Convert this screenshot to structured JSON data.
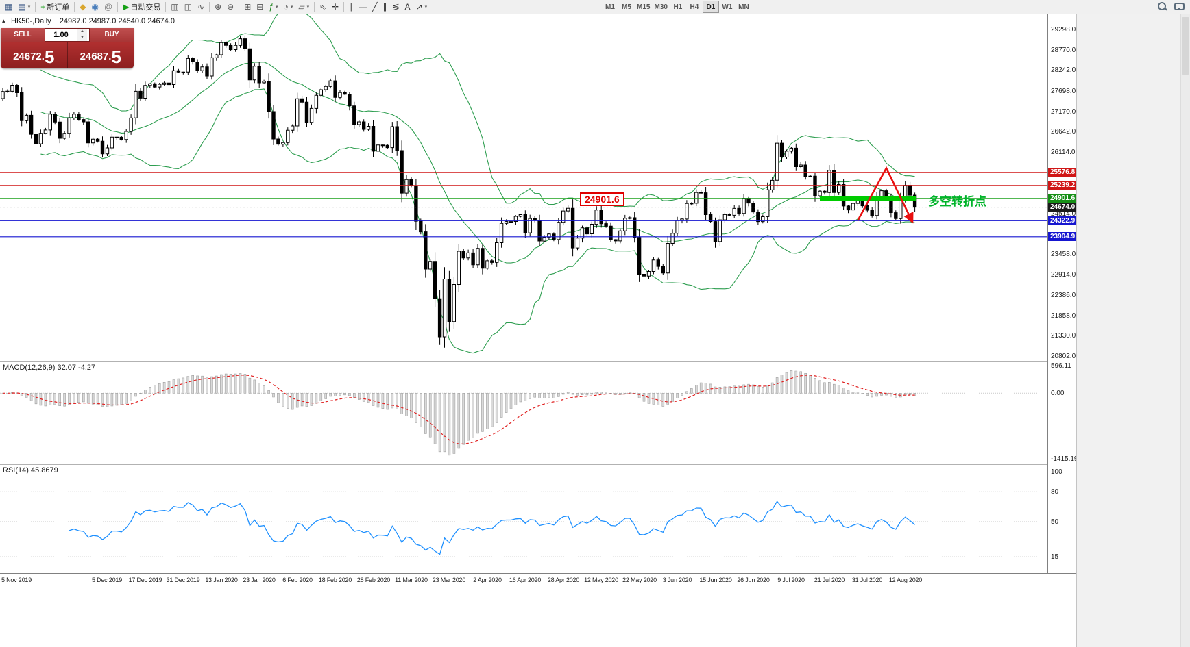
{
  "toolbar": {
    "items": [
      {
        "name": "new-chart-icon",
        "glyph": "▦",
        "color": "#44608a"
      },
      {
        "name": "profiles-icon",
        "glyph": "▤",
        "color": "#44608a",
        "dropdown": true
      },
      {
        "sep": true
      },
      {
        "name": "new-order-button",
        "glyph": "+",
        "color": "#0f9d0f",
        "label": "新订单"
      },
      {
        "sep": true
      },
      {
        "name": "history-center-icon",
        "glyph": "◆",
        "color": "#d9a62e"
      },
      {
        "name": "market-watch-icon",
        "glyph": "◉",
        "color": "#4a7ebb"
      },
      {
        "name": "mql-community-icon",
        "glyph": "@",
        "color": "#808080"
      },
      {
        "sep": true
      },
      {
        "name": "autotrading-button",
        "glyph": "▶",
        "color": "#17a017",
        "label": "自动交易"
      },
      {
        "sep": true
      },
      {
        "name": "bar-chart-icon",
        "glyph": "▥",
        "color": "#555555"
      },
      {
        "name": "candlestick-chart-icon",
        "glyph": "◫",
        "color": "#555555"
      },
      {
        "name": "line-chart-icon",
        "glyph": "∿",
        "color": "#555555"
      },
      {
        "sep": true
      },
      {
        "name": "zoom-in-icon",
        "glyph": "⊕",
        "color": "#555555"
      },
      {
        "name": "zoom-out-icon",
        "glyph": "⊖",
        "color": "#555555"
      },
      {
        "sep": true
      },
      {
        "name": "tile-windows-icon",
        "glyph": "⊞",
        "color": "#555555"
      },
      {
        "name": "arrange-icon",
        "glyph": "⊟",
        "color": "#555555"
      },
      {
        "name": "indicators-icon",
        "glyph": "ƒ",
        "color": "#0f7d0f",
        "dropdown": true
      },
      {
        "name": "periods-icon",
        "glyph": "◔",
        "color": "#555555",
        "dropdown": true
      },
      {
        "name": "templates-icon",
        "glyph": "▱",
        "color": "#555555",
        "dropdown": true
      },
      {
        "sep": true
      },
      {
        "name": "cursor-icon",
        "glyph": "⇖",
        "color": "#333333"
      },
      {
        "name": "crosshair-icon",
        "glyph": "✛",
        "color": "#333333"
      },
      {
        "sep": true
      },
      {
        "name": "vertical-line-icon",
        "glyph": "∣",
        "color": "#333333"
      },
      {
        "name": "horizontal-line-icon",
        "glyph": "―",
        "color": "#333333"
      },
      {
        "name": "trendline-icon",
        "glyph": "╱",
        "color": "#333333"
      },
      {
        "name": "channel-icon",
        "glyph": "∥",
        "color": "#333333"
      },
      {
        "name": "fibonacci-icon",
        "glyph": "≶",
        "color": "#333333"
      },
      {
        "name": "text-icon",
        "glyph": "A",
        "color": "#333333"
      },
      {
        "name": "arrows-icon",
        "glyph": "↗",
        "color": "#333333",
        "dropdown": true
      }
    ],
    "timeframes": [
      "M1",
      "M5",
      "M15",
      "M30",
      "H1",
      "H4",
      "D1",
      "W1",
      "MN"
    ],
    "active_timeframe": "D1"
  },
  "chart": {
    "title": "HK50-,Daily",
    "ohlc": "24987.0 24987.0 24540.0 24674.0",
    "collapse_glyph": "▴"
  },
  "trade_panel": {
    "sell_label": "SELL",
    "buy_label": "BUY",
    "volume": "1.00",
    "sell_price_main": "24672.",
    "sell_price_big": "5",
    "buy_price_main": "24687.",
    "buy_price_big": "5"
  },
  "price_axis": {
    "labels": [
      {
        "v": "29298.0",
        "n": 29298
      },
      {
        "v": "28770.0",
        "n": 28770
      },
      {
        "v": "28242.0",
        "n": 28242
      },
      {
        "v": "27698.0",
        "n": 27698
      },
      {
        "v": "27170.0",
        "n": 27170
      },
      {
        "v": "26642.0",
        "n": 26642
      },
      {
        "v": "26114.0",
        "n": 26114
      },
      {
        "v": "24514.0",
        "n": 24514
      },
      {
        "v": "23458.0",
        "n": 23458
      },
      {
        "v": "22914.0",
        "n": 22914
      },
      {
        "v": "22386.0",
        "n": 22386
      },
      {
        "v": "21858.0",
        "n": 21858
      },
      {
        "v": "21330.0",
        "n": 21330
      },
      {
        "v": "20802.0",
        "n": 20802
      }
    ],
    "tags": [
      {
        "v": "25576.8",
        "n": 25576.8,
        "color": "#d01616",
        "name": "resistance-1-tag"
      },
      {
        "v": "25239.2",
        "n": 25239.2,
        "color": "#d01616",
        "name": "resistance-2-tag"
      },
      {
        "v": "24901.6",
        "n": 24901.6,
        "color": "#169016",
        "name": "pivot-tag"
      },
      {
        "v": "24674.0",
        "n": 24674.0,
        "color": "#1a1a1a",
        "name": "bid-price-tag"
      },
      {
        "v": "24322.9",
        "n": 24322.9,
        "color": "#1616d0",
        "name": "support-1-tag"
      },
      {
        "v": "23904.9",
        "n": 23904.9,
        "color": "#1616d0",
        "name": "support-2-tag"
      }
    ]
  },
  "x_axis": {
    "labels": [
      {
        "t": "5 Nov 2019",
        "i": 0
      },
      {
        "t": "5 Dec 2019",
        "i": 22
      },
      {
        "t": "17 Dec 2019",
        "i": 30
      },
      {
        "t": "31 Dec 2019",
        "i": 38
      },
      {
        "t": "13 Jan 2020",
        "i": 46
      },
      {
        "t": "23 Jan 2020",
        "i": 54
      },
      {
        "t": "6 Feb 2020",
        "i": 62
      },
      {
        "t": "18 Feb 2020",
        "i": 70
      },
      {
        "t": "28 Feb 2020",
        "i": 78
      },
      {
        "t": "11 Mar 2020",
        "i": 86
      },
      {
        "t": "23 Mar 2020",
        "i": 94
      },
      {
        "t": "2 Apr 2020",
        "i": 102
      },
      {
        "t": "16 Apr 2020",
        "i": 110
      },
      {
        "t": "28 Apr 2020",
        "i": 118
      },
      {
        "t": "12 May 2020",
        "i": 126
      },
      {
        "t": "22 May 2020",
        "i": 134
      },
      {
        "t": "3 Jun 2020",
        "i": 142
      },
      {
        "t": "15 Jun 2020",
        "i": 150
      },
      {
        "t": "26 Jun 2020",
        "i": 158
      },
      {
        "t": "9 Jul 2020",
        "i": 166
      },
      {
        "t": "21 Jul 2020",
        "i": 174
      },
      {
        "t": "31 Jul 2020",
        "i": 182
      },
      {
        "t": "12 Aug 2020",
        "i": 190
      }
    ]
  },
  "macd": {
    "title": "MACD(12,26,9) 32.07 -4.27",
    "scale": [
      {
        "v": "596.11",
        "n": 596.11
      },
      {
        "v": "0.00",
        "n": 0
      },
      {
        "v": "-1415.19",
        "n": -1415.19
      }
    ]
  },
  "rsi": {
    "title": "RSI(14) 45.8679",
    "scale": [
      {
        "v": "100",
        "n": 100
      },
      {
        "v": "80",
        "n": 80
      },
      {
        "v": "50",
        "n": 50
      },
      {
        "v": "15",
        "n": 15
      }
    ],
    "levels": [
      80,
      50,
      15
    ]
  },
  "annotations": {
    "callout": {
      "text": "24901.6",
      "bar": 121.5,
      "price": 24901.6
    },
    "zone": {
      "price": 24901.6,
      "from_bar": 172,
      "to_bar": 192.3,
      "color": "#00cc00"
    },
    "arrow": {
      "color": "#e81010",
      "points": [
        [
          180,
          24330
        ],
        [
          186,
          25690
        ],
        [
          191.5,
          24290
        ]
      ]
    },
    "turn_label": {
      "text": "多空转折点",
      "bar": 194.8,
      "price": 24901.6,
      "color": "#00b42a"
    }
  },
  "chart_data": {
    "type": "candlestick",
    "symbol": "HK50",
    "timeframe": "Daily",
    "first_open": 27500,
    "closes": [
      27683,
      27689,
      27847,
      27651,
      26926,
      27065,
      26571,
      26323,
      26595,
      26681,
      27093,
      26889,
      26466,
      26595,
      26993,
      27093,
      26954,
      26893,
      26346,
      26444,
      26391,
      26062,
      26217,
      26498,
      26494,
      26436,
      26645,
      26994,
      27687,
      27508,
      27843,
      27884,
      27800,
      27871,
      27906,
      27864,
      28225,
      28189,
      28190,
      28543,
      28452,
      28226,
      28322,
      28087,
      28561,
      28638,
      28954,
      28885,
      28773,
      28883,
      29056,
      28795,
      27985,
      28341,
      27909,
      27949,
      27161,
      26449,
      26313,
      26356,
      26676,
      26786,
      27493,
      27404,
      26880,
      27242,
      27583,
      27730,
      27816,
      27960,
      27530,
      27655,
      27609,
      27309,
      26821,
      26893,
      26697,
      26778,
      26130,
      26292,
      26284,
      26223,
      26768,
      26146,
      25040,
      25392,
      25232,
      24309,
      24033,
      23064,
      23264,
      22292,
      21300,
      22805,
      21696,
      22663,
      23527,
      23352,
      23484,
      23175,
      23603,
      23085,
      23280,
      23236,
      23749,
      24253,
      24300,
      24301,
      24435,
      24480,
      24006,
      24380,
      24330,
      23793,
      23893,
      23977,
      23831,
      24280,
      24576,
      24644,
      23614,
      23869,
      24137,
      23981,
      24230,
      24602,
      24246,
      24180,
      23830,
      23797,
      24057,
      24388,
      24400,
      23885,
      22930,
      22882,
      23001,
      23301,
      23133,
      22961,
      23732,
      23996,
      24326,
      24366,
      24770,
      24776,
      25057,
      25049,
      24480,
      24301,
      23777,
      24344,
      24481,
      24464,
      24643,
      24511,
      24907,
      24781,
      24550,
      24301,
      24427,
      25124,
      25373,
      26339,
      25975,
      26129,
      26210,
      25727,
      25772,
      25477,
      25481,
      24970,
      25089,
      25057,
      25635,
      25057,
      25264,
      24705,
      24603,
      24772,
      24883,
      24711,
      24595,
      24458,
      24946,
      25102,
      24930,
      24532,
      24377,
      24890,
      25245,
      24987,
      24674
    ],
    "bollinger": {
      "period": 20,
      "deviation": 2
    },
    "macd_params": [
      12,
      26,
      9
    ],
    "rsi_period": 14,
    "h_lines": [
      {
        "price": 25576.8,
        "color": "#d01616"
      },
      {
        "price": 25239.2,
        "color": "#d01616"
      },
      {
        "price": 24901.6,
        "color": "#18a018"
      },
      {
        "price": 24322.9,
        "color": "#1616d0"
      },
      {
        "price": 23904.9,
        "color": "#1616d0"
      }
    ],
    "bid": {
      "price": 24674.0,
      "color": "#999999"
    }
  }
}
